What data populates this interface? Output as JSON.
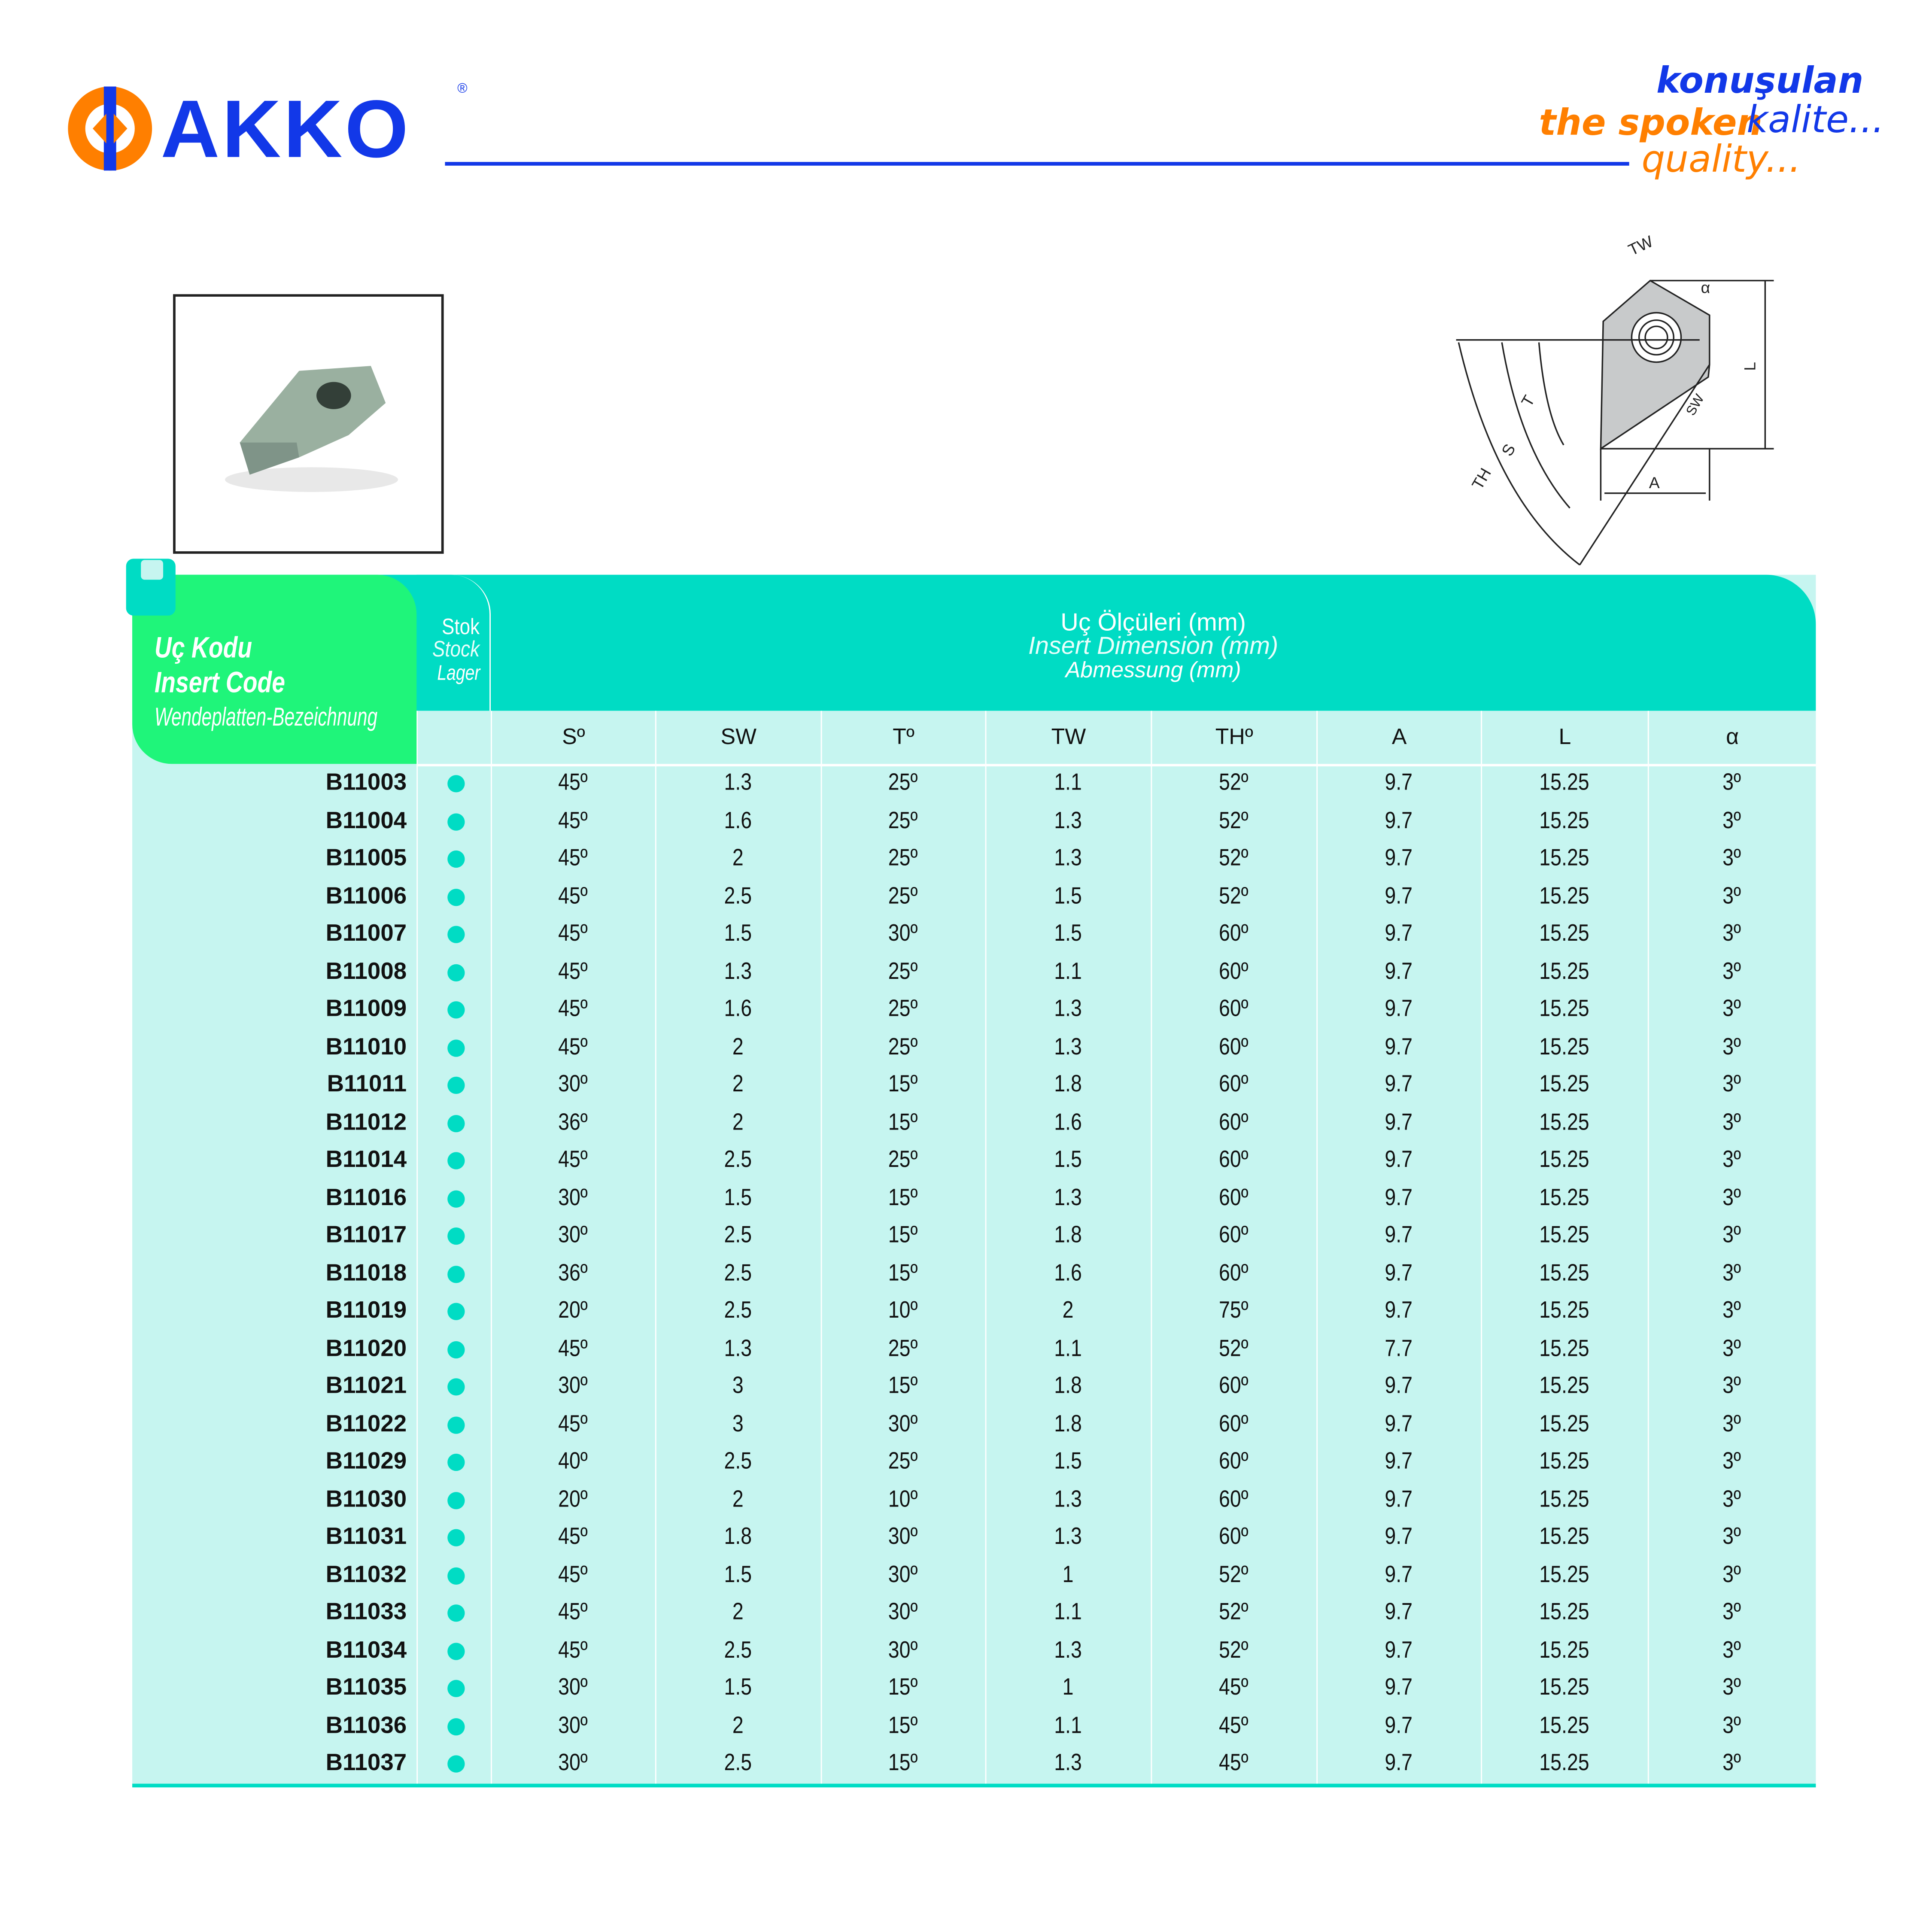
{
  "brand": {
    "name": "AKKO",
    "registered": "®",
    "colors": {
      "blue": "#1238e8",
      "orange": "#ff7f00",
      "teal": "#00dcc4",
      "green": "#1ff57a",
      "light": "#c6f5f0"
    }
  },
  "tagline": {
    "line1": "konuşulan",
    "line2a": "the spoken",
    "line2b": "kalite...",
    "line3": "quality..."
  },
  "diagram": {
    "labels": [
      "TW",
      "α",
      "L",
      "T",
      "S",
      "TH",
      "SW",
      "A"
    ]
  },
  "table": {
    "code_header": [
      "Uç Kodu",
      "Insert Code",
      "Wendeplatten-Bezeichnung"
    ],
    "stock_header": [
      "Stok",
      "Stock",
      "Lager"
    ],
    "dim_header": [
      "Uç Ölçüleri (mm)",
      "Insert Dimension (mm)",
      "Abmessung (mm)"
    ],
    "columns": [
      "Sº",
      "SW",
      "Tº",
      "TW",
      "THº",
      "A",
      "L",
      "α"
    ],
    "rows": [
      [
        "B11003",
        "45º",
        "1.3",
        "25º",
        "1.1",
        "52º",
        "9.7",
        "15.25",
        "3º"
      ],
      [
        "B11004",
        "45º",
        "1.6",
        "25º",
        "1.3",
        "52º",
        "9.7",
        "15.25",
        "3º"
      ],
      [
        "B11005",
        "45º",
        "2",
        "25º",
        "1.3",
        "52º",
        "9.7",
        "15.25",
        "3º"
      ],
      [
        "B11006",
        "45º",
        "2.5",
        "25º",
        "1.5",
        "52º",
        "9.7",
        "15.25",
        "3º"
      ],
      [
        "B11007",
        "45º",
        "1.5",
        "30º",
        "1.5",
        "60º",
        "9.7",
        "15.25",
        "3º"
      ],
      [
        "B11008",
        "45º",
        "1.3",
        "25º",
        "1.1",
        "60º",
        "9.7",
        "15.25",
        "3º"
      ],
      [
        "B11009",
        "45º",
        "1.6",
        "25º",
        "1.3",
        "60º",
        "9.7",
        "15.25",
        "3º"
      ],
      [
        "B11010",
        "45º",
        "2",
        "25º",
        "1.3",
        "60º",
        "9.7",
        "15.25",
        "3º"
      ],
      [
        "B11011",
        "30º",
        "2",
        "15º",
        "1.8",
        "60º",
        "9.7",
        "15.25",
        "3º"
      ],
      [
        "B11012",
        "36º",
        "2",
        "15º",
        "1.6",
        "60º",
        "9.7",
        "15.25",
        "3º"
      ],
      [
        "B11014",
        "45º",
        "2.5",
        "25º",
        "1.5",
        "60º",
        "9.7",
        "15.25",
        "3º"
      ],
      [
        "B11016",
        "30º",
        "1.5",
        "15º",
        "1.3",
        "60º",
        "9.7",
        "15.25",
        "3º"
      ],
      [
        "B11017",
        "30º",
        "2.5",
        "15º",
        "1.8",
        "60º",
        "9.7",
        "15.25",
        "3º"
      ],
      [
        "B11018",
        "36º",
        "2.5",
        "15º",
        "1.6",
        "60º",
        "9.7",
        "15.25",
        "3º"
      ],
      [
        "B11019",
        "20º",
        "2.5",
        "10º",
        "2",
        "75º",
        "9.7",
        "15.25",
        "3º"
      ],
      [
        "B11020",
        "45º",
        "1.3",
        "25º",
        "1.1",
        "52º",
        "7.7",
        "15.25",
        "3º"
      ],
      [
        "B11021",
        "30º",
        "3",
        "15º",
        "1.8",
        "60º",
        "9.7",
        "15.25",
        "3º"
      ],
      [
        "B11022",
        "45º",
        "3",
        "30º",
        "1.8",
        "60º",
        "9.7",
        "15.25",
        "3º"
      ],
      [
        "B11029",
        "40º",
        "2.5",
        "25º",
        "1.5",
        "60º",
        "9.7",
        "15.25",
        "3º"
      ],
      [
        "B11030",
        "20º",
        "2",
        "10º",
        "1.3",
        "60º",
        "9.7",
        "15.25",
        "3º"
      ],
      [
        "B11031",
        "45º",
        "1.8",
        "30º",
        "1.3",
        "60º",
        "9.7",
        "15.25",
        "3º"
      ],
      [
        "B11032",
        "45º",
        "1.5",
        "30º",
        "1",
        "52º",
        "9.7",
        "15.25",
        "3º"
      ],
      [
        "B11033",
        "45º",
        "2",
        "30º",
        "1.1",
        "52º",
        "9.7",
        "15.25",
        "3º"
      ],
      [
        "B11034",
        "45º",
        "2.5",
        "30º",
        "1.3",
        "52º",
        "9.7",
        "15.25",
        "3º"
      ],
      [
        "B11035",
        "30º",
        "1.5",
        "15º",
        "1",
        "45º",
        "9.7",
        "15.25",
        "3º"
      ],
      [
        "B11036",
        "30º",
        "2",
        "15º",
        "1.1",
        "45º",
        "9.7",
        "15.25",
        "3º"
      ],
      [
        "B11037",
        "30º",
        "2.5",
        "15º",
        "1.3",
        "45º",
        "9.7",
        "15.25",
        "3º"
      ]
    ],
    "in_stock": true
  }
}
